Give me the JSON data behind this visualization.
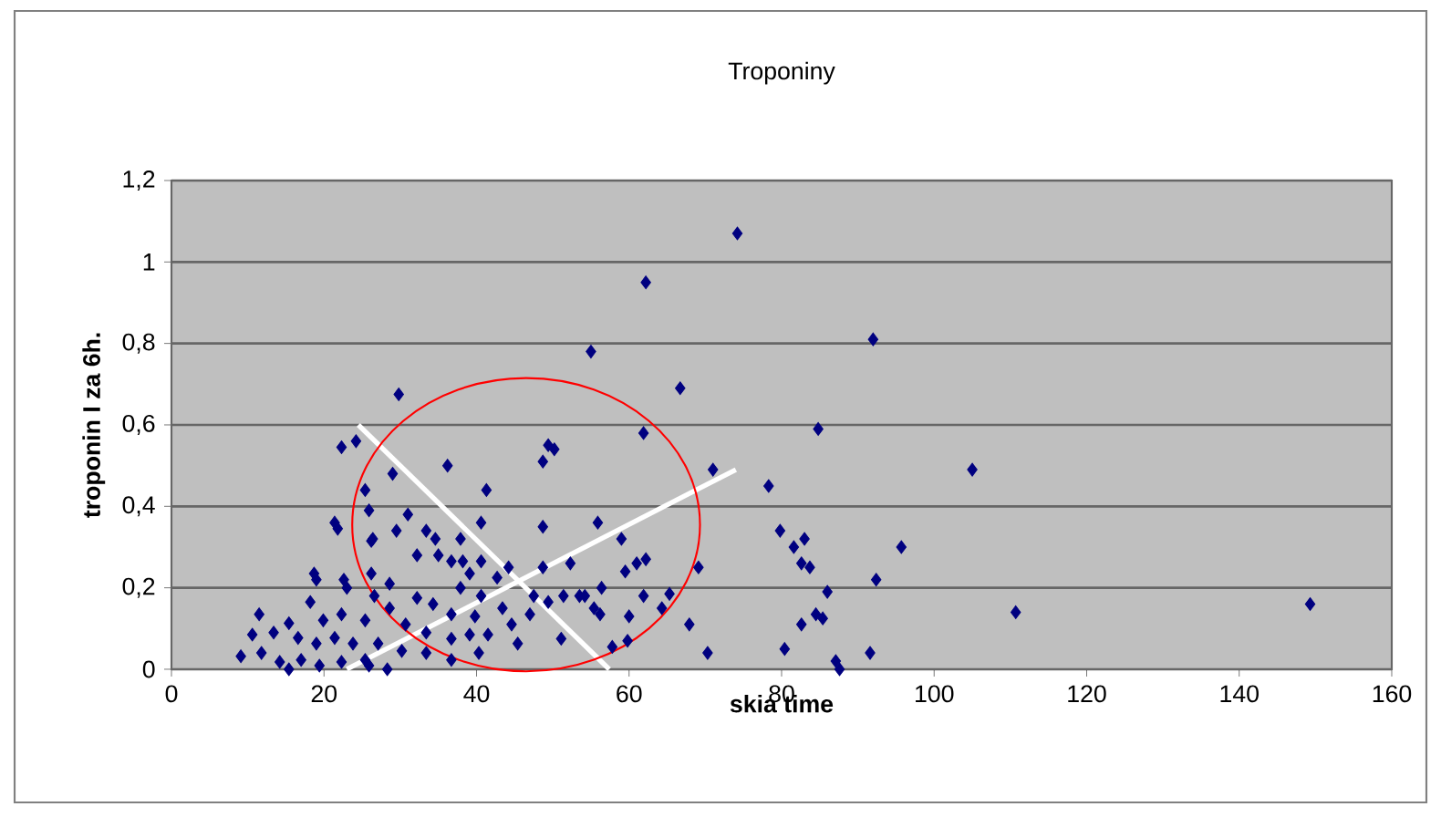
{
  "chart_data": {
    "type": "scatter",
    "title": "Troponiny",
    "xlabel": "skia time",
    "ylabel": "troponin I za 6h.",
    "xlim": [
      0,
      160
    ],
    "xticks": [
      0,
      20,
      40,
      60,
      80,
      100,
      120,
      140,
      160
    ],
    "ylim": [
      0,
      1.2
    ],
    "yticks": [
      0,
      {
        "value": 0.2,
        "label": "0,2"
      },
      {
        "value": 0.4,
        "label": "0,4"
      },
      {
        "value": 0.6,
        "label": "0,6"
      },
      {
        "value": 0.8,
        "label": "0,8"
      },
      1,
      {
        "value": 1.2,
        "label": "1,2"
      }
    ],
    "grid": "y",
    "legend": false,
    "marker": "diamond",
    "series": [
      {
        "color": "#000080",
        "x": [
          74.2,
          92,
          84.8,
          105,
          78.3,
          79.8,
          83,
          81.6,
          95.7,
          82.6,
          83.7,
          92.4,
          86,
          110.7,
          149.3,
          84.5,
          85.4,
          82.6,
          80.4,
          91.6,
          87.1,
          87.6,
          66.7,
          61.9,
          71,
          55.9,
          59,
          62.2,
          61,
          59.5,
          69.1,
          56.4,
          54.2,
          55.4,
          56.2,
          61.9,
          65.3,
          64.3,
          60,
          67.9,
          59.8,
          57.8,
          70.3,
          62.2,
          55,
          29.8,
          49.4,
          48.7,
          50.2,
          29,
          36.2,
          41.3,
          31,
          40.6,
          48.7,
          29.5,
          33.4,
          34.6,
          37.9,
          26.4,
          32.2,
          35,
          36.7,
          38.2,
          40.6,
          44.2,
          48.7,
          52.3,
          39.1,
          42.7,
          26.2,
          28.6,
          26.6,
          32.2,
          37.9,
          40.6,
          47.5,
          49.4,
          51.4,
          53.5,
          28.6,
          34.3,
          36.7,
          39.8,
          43.4,
          44.6,
          47,
          51.1,
          30.7,
          33.4,
          36.7,
          39.1,
          41.5,
          45.4,
          27.1,
          30.2,
          33.4,
          36.7,
          40.3,
          25.9,
          22.3,
          24.2,
          25.4,
          25.9,
          21.4,
          21.8,
          26.2,
          18.7,
          19,
          22.6,
          11.5,
          18.2,
          23,
          15.4,
          19.9,
          22.3,
          25.4,
          10.6,
          13.4,
          16.6,
          19,
          21.4,
          23.8,
          9.1,
          11.8,
          14.2,
          17,
          19.4,
          22.3,
          25.4,
          28.3,
          15.4
        ],
        "values": [
          1.07,
          0.81,
          0.59,
          0.49,
          0.45,
          0.34,
          0.32,
          0.3,
          0.3,
          0.26,
          0.25,
          0.22,
          0.19,
          0.14,
          0.16,
          0.135,
          0.125,
          0.11,
          0.05,
          0.04,
          0.02,
          0,
          0.69,
          0.58,
          0.49,
          0.36,
          0.32,
          0.27,
          0.26,
          0.24,
          0.25,
          0.2,
          0.18,
          0.15,
          0.135,
          0.18,
          0.185,
          0.15,
          0.13,
          0.11,
          0.07,
          0.055,
          0.04,
          0.95,
          0.78,
          0.675,
          0.55,
          0.51,
          0.54,
          0.48,
          0.5,
          0.44,
          0.38,
          0.36,
          0.35,
          0.34,
          0.34,
          0.32,
          0.32,
          0.32,
          0.28,
          0.28,
          0.265,
          0.265,
          0.265,
          0.25,
          0.25,
          0.26,
          0.235,
          0.225,
          0.235,
          0.21,
          0.18,
          0.175,
          0.2,
          0.18,
          0.18,
          0.165,
          0.18,
          0.18,
          0.15,
          0.16,
          0.135,
          0.13,
          0.15,
          0.11,
          0.135,
          0.075,
          0.11,
          0.09,
          0.075,
          0.085,
          0.085,
          0.063,
          0.063,
          0.045,
          0.04,
          0.023,
          0.04,
          0.009,
          0.545,
          0.56,
          0.44,
          0.39,
          0.36,
          0.345,
          0.315,
          0.235,
          0.22,
          0.22,
          0.135,
          0.165,
          0.2,
          0.113,
          0.12,
          0.135,
          0.12,
          0.085,
          0.09,
          0.077,
          0.063,
          0.077,
          0.063,
          0.032,
          0.04,
          0.018,
          0.023,
          0.009,
          0.018,
          0.023,
          0,
          0
        ]
      },
      {
        "type": "line",
        "color": "#ffffff",
        "marker": "none",
        "x": [
          24.5,
          57.4
        ],
        "values": [
          0.6,
          0
        ]
      },
      {
        "type": "line",
        "color": "#ffffff",
        "marker": "none",
        "x": [
          23,
          74
        ],
        "values": [
          0,
          0.49
        ]
      }
    ]
  }
}
